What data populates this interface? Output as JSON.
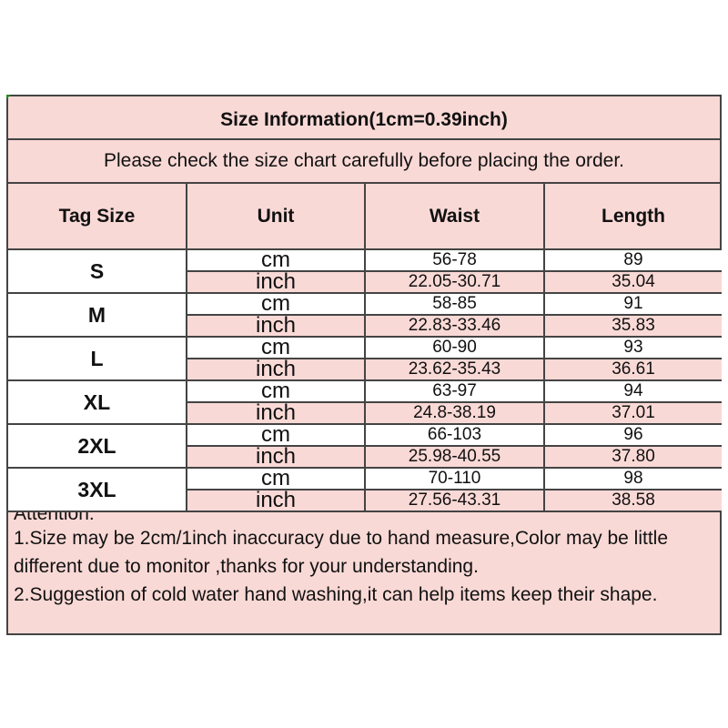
{
  "title": "Size Information(1cm=0.39inch)",
  "subtitle": "Please check the size chart carefully before placing the order.",
  "headers": [
    "Tag Size",
    "Unit",
    "Waist",
    "Length"
  ],
  "rows": [
    {
      "size": "S",
      "cm": {
        "unit": "cm",
        "waist": "56-78",
        "length": "89"
      },
      "inch": {
        "unit": "inch",
        "waist": "22.05-30.71",
        "length": "35.04"
      }
    },
    {
      "size": "M",
      "cm": {
        "unit": "cm",
        "waist": "58-85",
        "length": "91"
      },
      "inch": {
        "unit": "inch",
        "waist": "22.83-33.46",
        "length": "35.83"
      }
    },
    {
      "size": "L",
      "cm": {
        "unit": "cm",
        "waist": "60-90",
        "length": "93"
      },
      "inch": {
        "unit": "inch",
        "waist": "23.62-35.43",
        "length": "36.61"
      }
    },
    {
      "size": "XL",
      "cm": {
        "unit": "cm",
        "waist": "63-97",
        "length": "94"
      },
      "inch": {
        "unit": "inch",
        "waist": "24.8-38.19",
        "length": "37.01"
      }
    },
    {
      "size": "2XL",
      "cm": {
        "unit": "cm",
        "waist": "66-103",
        "length": "96"
      },
      "inch": {
        "unit": "inch",
        "waist": "25.98-40.55",
        "length": "37.80"
      }
    },
    {
      "size": "3XL",
      "cm": {
        "unit": "cm",
        "waist": "70-110",
        "length": "98"
      },
      "inch": {
        "unit": "inch",
        "waist": "27.56-43.31",
        "length": "38.58"
      }
    }
  ],
  "notes": {
    "heading": "Attention:",
    "items": [
      "1.Size may be 2cm/1inch inaccuracy due to hand measure,Color may be little different due to monitor ,thanks for your understanding.",
      "2.Suggestion of cold water hand washing,it can help items keep their shape."
    ]
  },
  "colors": {
    "pink": "#f9d9d6",
    "border": "#444444"
  }
}
